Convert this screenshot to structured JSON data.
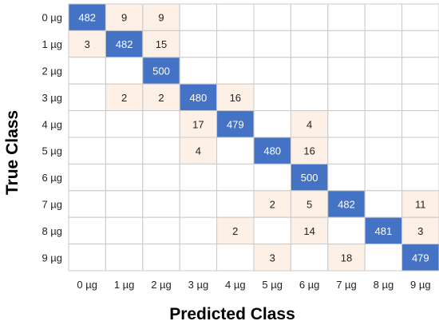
{
  "chart_data": {
    "type": "heatmap",
    "xlabel": "Predicted Class",
    "ylabel": "True Class",
    "x_categories": [
      "0 µg",
      "1 µg",
      "2 µg",
      "3 µg",
      "4 µg",
      "5 µg",
      "6 µg",
      "7 µg",
      "8 µg",
      "9 µg"
    ],
    "y_categories": [
      "0 µg",
      "1 µg",
      "2 µg",
      "3 µg",
      "4 µg",
      "5 µg",
      "6 µg",
      "7 µg",
      "8 µg",
      "9 µg"
    ],
    "matrix": [
      [
        482,
        9,
        9,
        null,
        null,
        null,
        null,
        null,
        null,
        null
      ],
      [
        3,
        482,
        15,
        null,
        null,
        null,
        null,
        null,
        null,
        null
      ],
      [
        null,
        null,
        500,
        null,
        null,
        null,
        null,
        null,
        null,
        null
      ],
      [
        null,
        2,
        2,
        480,
        16,
        null,
        null,
        null,
        null,
        null
      ],
      [
        null,
        null,
        null,
        17,
        479,
        null,
        4,
        null,
        null,
        null
      ],
      [
        null,
        null,
        null,
        4,
        null,
        480,
        16,
        null,
        null,
        null
      ],
      [
        null,
        null,
        null,
        null,
        null,
        null,
        500,
        null,
        null,
        null
      ],
      [
        null,
        null,
        null,
        null,
        null,
        2,
        5,
        482,
        null,
        11
      ],
      [
        null,
        null,
        null,
        null,
        2,
        null,
        14,
        null,
        481,
        3
      ],
      [
        null,
        null,
        null,
        null,
        null,
        3,
        null,
        18,
        null,
        479
      ]
    ],
    "colors": {
      "diagonal": "#4472c4",
      "off_diagonal": "#fdf0e6",
      "empty": "#ffffff",
      "grid": "#c9c9c9",
      "diagonal_text": "#ffffff",
      "cell_text": "#222222",
      "tick_text": "#222222",
      "axis_title": "#000000"
    }
  }
}
